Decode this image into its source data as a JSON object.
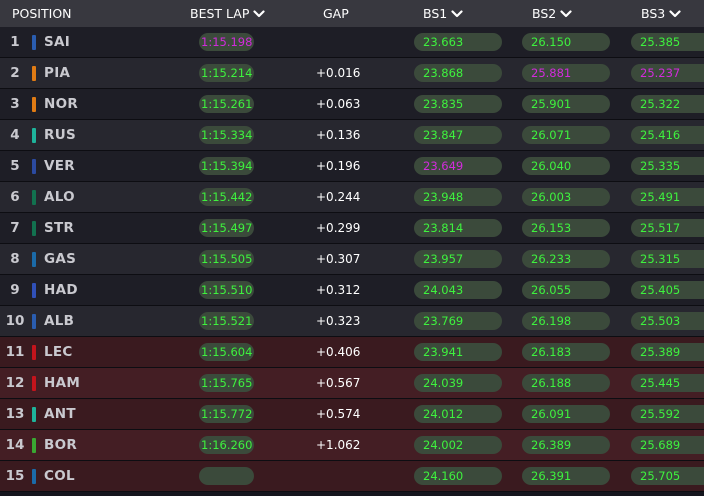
{
  "header": {
    "position_label": "POSITION",
    "best_lap_label": "BEST LAP",
    "gap_label": "GAP",
    "bs1_label": "BS1",
    "bs2_label": "BS2",
    "bs3_label": "BS3"
  },
  "colors": {
    "personal_best": "#3ef23e",
    "overall_best": "#d22bdc",
    "header_bg": "#38383f",
    "eliminated_row": "#3a1a1f"
  },
  "rows": [
    {
      "pos": "1",
      "driver": "SAI",
      "team_color": "#2a5db0",
      "best_lap": "1:15.198",
      "best_lap_color": "purple",
      "gap": "",
      "bs1": "23.663",
      "bs1_color": "green",
      "bs2": "26.150",
      "bs2_color": "green",
      "bs3": "25.385",
      "bs3_color": "green"
    },
    {
      "pos": "2",
      "driver": "PIA",
      "team_color": "#e07b14",
      "best_lap": "1:15.214",
      "best_lap_color": "green",
      "gap": "+0.016",
      "bs1": "23.868",
      "bs1_color": "green",
      "bs2": "25.881",
      "bs2_color": "purple",
      "bs3": "25.237",
      "bs3_color": "purple"
    },
    {
      "pos": "3",
      "driver": "NOR",
      "team_color": "#e07b14",
      "best_lap": "1:15.261",
      "best_lap_color": "green",
      "gap": "+0.063",
      "bs1": "23.835",
      "bs1_color": "green",
      "bs2": "25.901",
      "bs2_color": "green",
      "bs3": "25.322",
      "bs3_color": "green"
    },
    {
      "pos": "4",
      "driver": "RUS",
      "team_color": "#1eb39b",
      "best_lap": "1:15.334",
      "best_lap_color": "green",
      "gap": "+0.136",
      "bs1": "23.847",
      "bs1_color": "green",
      "bs2": "26.071",
      "bs2_color": "green",
      "bs3": "25.416",
      "bs3_color": "green"
    },
    {
      "pos": "5",
      "driver": "VER",
      "team_color": "#2b4aa0",
      "best_lap": "1:15.394",
      "best_lap_color": "green",
      "gap": "+0.196",
      "bs1": "23.649",
      "bs1_color": "purple",
      "bs2": "26.040",
      "bs2_color": "green",
      "bs3": "25.335",
      "bs3_color": "green"
    },
    {
      "pos": "6",
      "driver": "ALO",
      "team_color": "#12714f",
      "best_lap": "1:15.442",
      "best_lap_color": "green",
      "gap": "+0.244",
      "bs1": "23.948",
      "bs1_color": "green",
      "bs2": "26.003",
      "bs2_color": "green",
      "bs3": "25.491",
      "bs3_color": "green"
    },
    {
      "pos": "7",
      "driver": "STR",
      "team_color": "#12714f",
      "best_lap": "1:15.497",
      "best_lap_color": "green",
      "gap": "+0.299",
      "bs1": "23.814",
      "bs1_color": "green",
      "bs2": "26.153",
      "bs2_color": "green",
      "bs3": "25.517",
      "bs3_color": "green"
    },
    {
      "pos": "8",
      "driver": "GAS",
      "team_color": "#1b6aa8",
      "best_lap": "1:15.505",
      "best_lap_color": "green",
      "gap": "+0.307",
      "bs1": "23.957",
      "bs1_color": "green",
      "bs2": "26.233",
      "bs2_color": "green",
      "bs3": "25.315",
      "bs3_color": "green"
    },
    {
      "pos": "9",
      "driver": "HAD",
      "team_color": "#3050b8",
      "best_lap": "1:15.510",
      "best_lap_color": "green",
      "gap": "+0.312",
      "bs1": "24.043",
      "bs1_color": "green",
      "bs2": "26.055",
      "bs2_color": "green",
      "bs3": "25.405",
      "bs3_color": "green"
    },
    {
      "pos": "10",
      "driver": "ALB",
      "team_color": "#2a5db0",
      "best_lap": "1:15.521",
      "best_lap_color": "green",
      "gap": "+0.323",
      "bs1": "23.769",
      "bs1_color": "green",
      "bs2": "26.198",
      "bs2_color": "green",
      "bs3": "25.503",
      "bs3_color": "green"
    },
    {
      "pos": "11",
      "driver": "LEC",
      "team_color": "#c4141c",
      "best_lap": "1:15.604",
      "best_lap_color": "green",
      "gap": "+0.406",
      "bs1": "23.941",
      "bs1_color": "green",
      "bs2": "26.183",
      "bs2_color": "green",
      "bs3": "25.389",
      "bs3_color": "green"
    },
    {
      "pos": "12",
      "driver": "HAM",
      "team_color": "#c4141c",
      "best_lap": "1:15.765",
      "best_lap_color": "green",
      "gap": "+0.567",
      "bs1": "24.039",
      "bs1_color": "green",
      "bs2": "26.188",
      "bs2_color": "green",
      "bs3": "25.445",
      "bs3_color": "green"
    },
    {
      "pos": "13",
      "driver": "ANT",
      "team_color": "#1eb39b",
      "best_lap": "1:15.772",
      "best_lap_color": "green",
      "gap": "+0.574",
      "bs1": "24.012",
      "bs1_color": "green",
      "bs2": "26.091",
      "bs2_color": "green",
      "bs3": "25.592",
      "bs3_color": "green"
    },
    {
      "pos": "14",
      "driver": "BOR",
      "team_color": "#3aa832",
      "best_lap": "1:16.260",
      "best_lap_color": "green",
      "gap": "+1.062",
      "bs1": "24.002",
      "bs1_color": "green",
      "bs2": "26.389",
      "bs2_color": "green",
      "bs3": "25.689",
      "bs3_color": "green"
    },
    {
      "pos": "15",
      "driver": "COL",
      "team_color": "#1b6aa8",
      "best_lap": "",
      "best_lap_color": "green",
      "gap": "",
      "bs1": "24.160",
      "bs1_color": "green",
      "bs2": "26.391",
      "bs2_color": "green",
      "bs3": "25.705",
      "bs3_color": "green"
    }
  ]
}
